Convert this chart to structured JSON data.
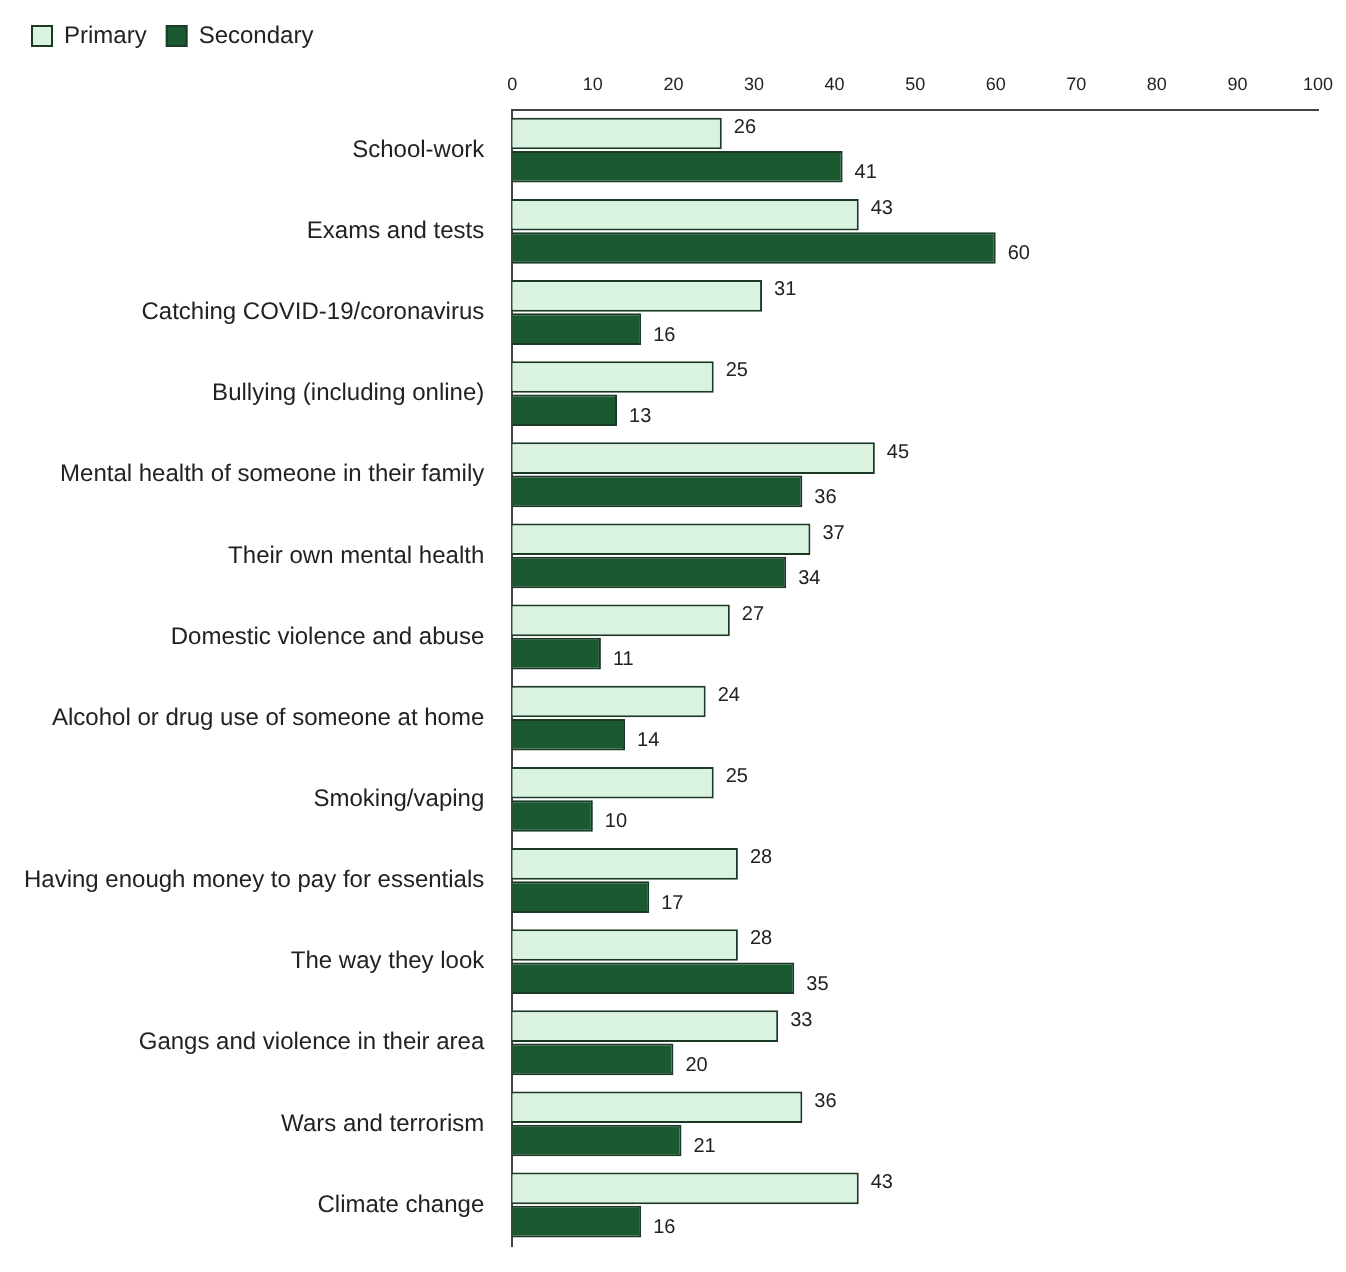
{
  "chart_data": {
    "type": "bar",
    "orientation": "horizontal",
    "categories": [
      "School-work",
      "Exams and tests",
      "Catching COVID-19/coronavirus",
      "Bullying (including online)",
      "Mental health of someone in their family",
      "Their own mental health",
      "Domestic violence and abuse",
      "Alcohol or drug use of someone at home",
      "Smoking/vaping",
      "Having enough money to pay for essentials",
      "The way they look",
      "Gangs and violence in their area",
      "Wars and terrorism",
      "Climate change"
    ],
    "series": [
      {
        "name": "Primary",
        "color": "#daf2e0",
        "values": [
          26,
          43,
          31,
          25,
          45,
          37,
          27,
          24,
          25,
          28,
          28,
          33,
          36,
          43
        ]
      },
      {
        "name": "Secondary",
        "color": "#1b5a30",
        "values": [
          41,
          60,
          16,
          13,
          36,
          34,
          11,
          14,
          10,
          17,
          35,
          20,
          21,
          16
        ]
      }
    ],
    "xlim": [
      0,
      100
    ],
    "xticks": [
      0,
      10,
      20,
      30,
      40,
      50,
      60,
      70,
      80,
      90,
      100
    ],
    "grid": false,
    "legend": "top left",
    "data_labels": true
  }
}
